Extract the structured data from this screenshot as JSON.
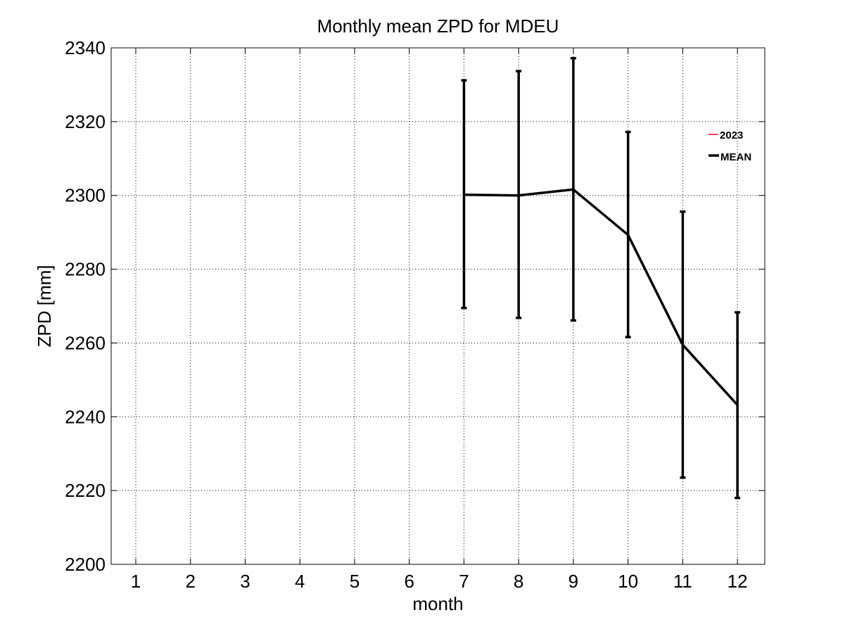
{
  "chart_data": {
    "type": "line",
    "title": "Monthly mean ZPD for MDEU",
    "xlabel": "month",
    "ylabel": "ZPD [mm]",
    "xlim": [
      0.55,
      12.5
    ],
    "ylim": [
      2200,
      2340
    ],
    "xticks": [
      1,
      2,
      3,
      4,
      5,
      6,
      7,
      8,
      9,
      10,
      11,
      12
    ],
    "yticks": [
      2200,
      2220,
      2240,
      2260,
      2280,
      2300,
      2320,
      2340
    ],
    "grid": true,
    "legend_position": "upper-right",
    "series": [
      {
        "name": "2023",
        "color": "#ff0000",
        "x": [],
        "y": []
      },
      {
        "name": "MEAN",
        "color": "#000000",
        "x": [
          7,
          8,
          9,
          10,
          11,
          12
        ],
        "y": [
          2300.2,
          2300.0,
          2301.6,
          2289.3,
          2259.5,
          2243.2
        ],
        "error_low": [
          2269.5,
          2266.8,
          2266.1,
          2261.6,
          2223.5,
          2218.0
        ],
        "error_high": [
          2331.2,
          2333.7,
          2337.2,
          2317.2,
          2295.6,
          2268.3
        ]
      }
    ]
  }
}
